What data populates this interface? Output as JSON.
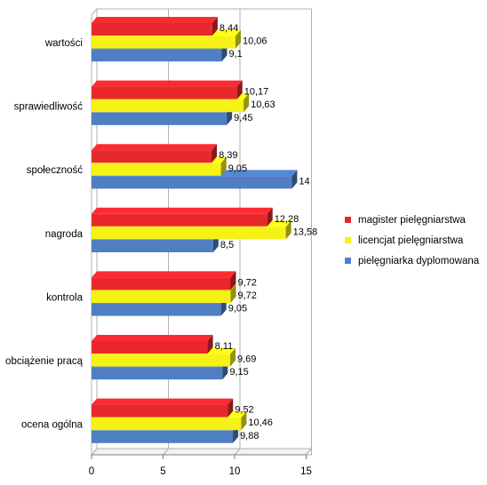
{
  "chart_data": {
    "type": "bar",
    "orientation": "horizontal",
    "style": "3d",
    "categories": [
      "wartości",
      "sprawiedliwość",
      "społeczność",
      "nagroda",
      "kontrola",
      "obciążenie pracą",
      "ocena ogólna"
    ],
    "series": [
      {
        "name": "magister pielęgniarstwa",
        "color": "#e8282c",
        "values": [
          8.44,
          10.17,
          8.39,
          12.28,
          9.72,
          8.11,
          9.52
        ],
        "labels": [
          "8,44",
          "10,17",
          "8,39",
          "12,28",
          "9,72",
          "8,11",
          "9,52"
        ]
      },
      {
        "name": "licencjat pielęgniarstwa",
        "color": "#f6f216",
        "values": [
          10.06,
          10.63,
          9.05,
          13.58,
          9.72,
          9.69,
          10.46
        ],
        "labels": [
          "10,06",
          "10,63",
          "9,05",
          "13,58",
          "9,72",
          "9,69",
          "10,46"
        ]
      },
      {
        "name": "pielęgniarka dyplomowana",
        "color": "#4f7ec3",
        "values": [
          9.1,
          9.45,
          14,
          8.5,
          9.05,
          9.15,
          9.88
        ],
        "labels": [
          "9,1",
          "9,45",
          "14",
          "8,5",
          "9,05",
          "9,15",
          "9,88"
        ]
      }
    ],
    "xlim": [
      0,
      15
    ],
    "xticks": [
      0,
      5,
      10,
      15
    ],
    "xtick_labels": [
      "0",
      "5",
      "10",
      "15"
    ],
    "grid": true,
    "legend_position": "right"
  }
}
